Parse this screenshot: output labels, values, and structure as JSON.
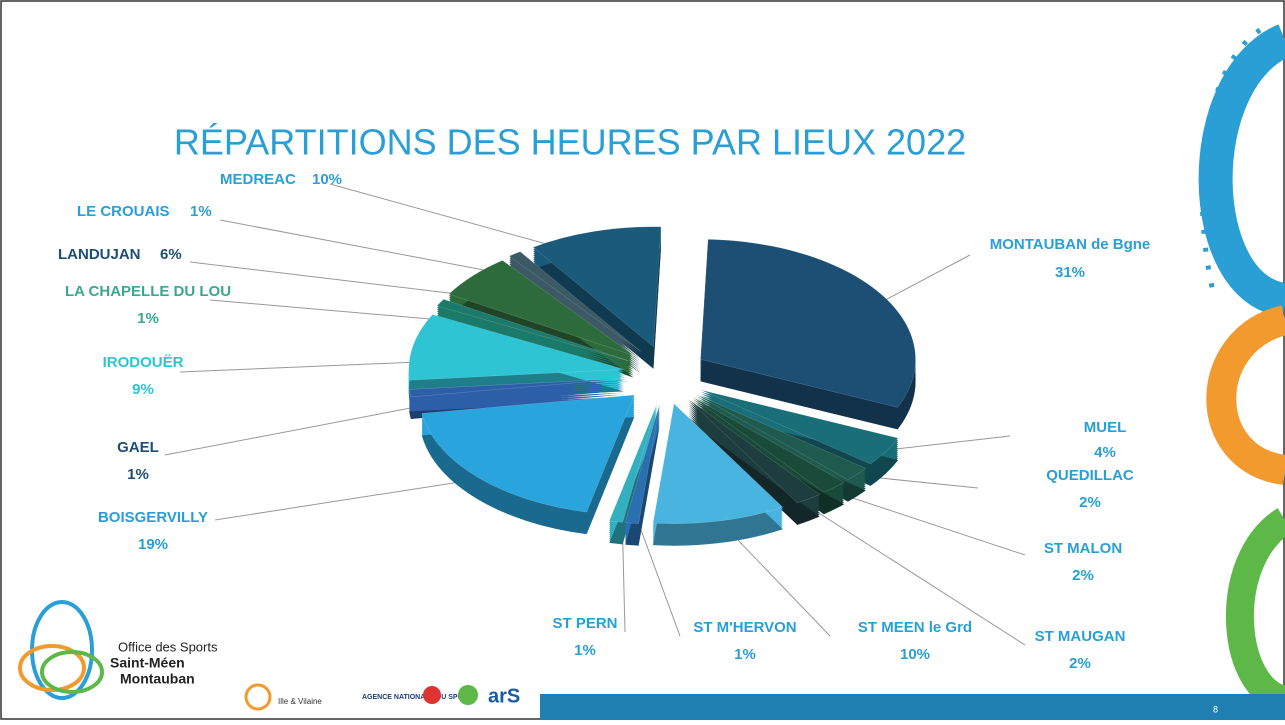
{
  "chart_data": {
    "type": "pie",
    "title": "RÉPARTITIONS DES HEURES PAR LIEUX 2022",
    "categories": [
      "MONTAUBAN de Bgne",
      "MUEL",
      "QUEDILLAC",
      "ST MALON",
      "ST MAUGAN",
      "ST MEEN le Grd",
      "ST M'HERVON",
      "ST PERN",
      "BOISGERVILLY",
      "GAEL",
      "IRODOUËR",
      "LA CHAPELLE DU LOU",
      "LANDUJAN",
      "LE CROUAIS",
      "MEDREAC"
    ],
    "values": [
      31,
      4,
      2,
      2,
      2,
      10,
      1,
      1,
      19,
      1,
      9,
      1,
      6,
      1,
      10
    ],
    "value_labels": [
      "31%",
      "4%",
      "2%",
      "2%",
      "2%",
      "10%",
      "1%",
      "1%",
      "19%",
      "1%",
      "9%",
      "1%",
      "6%",
      "1%",
      "10%"
    ],
    "colors": [
      "#1d4e74",
      "#1a6e78",
      "#1e5a4e",
      "#1a4a3a",
      "#1e3d3e",
      "#4ab4e0",
      "#2a6fb0",
      "#33b0c0",
      "#29a4dc",
      "#2d5fa8",
      "#2ec4d4",
      "#1b7a6a",
      "#2e6b3c",
      "#3c5a66",
      "#1a5a7a"
    ]
  },
  "slide": {
    "logo_lines": [
      "Office des Sports",
      "Saint-Méen",
      "Montauban"
    ],
    "partner_logos": [
      "Ille & Vilaine",
      "AGENCE NATIONALE DU SPORT",
      "arS"
    ],
    "page_number": "8"
  }
}
